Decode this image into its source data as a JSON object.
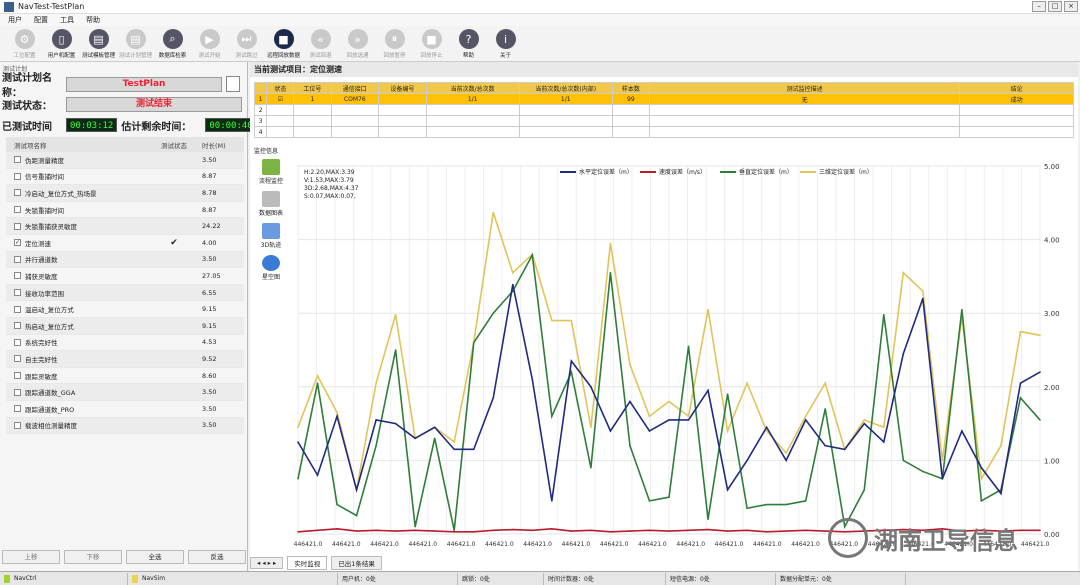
{
  "window": {
    "title": "NavTest-TestPlan"
  },
  "menu": [
    "用户",
    "配置",
    "工具",
    "帮助"
  ],
  "toolbar": [
    {
      "label": "工位配置",
      "icon": "gear-icon",
      "state": "dis"
    },
    {
      "label": "用户机配置",
      "icon": "device-icon",
      "state": "en"
    },
    {
      "label": "测试模板管理",
      "icon": "template-icon",
      "state": "en"
    },
    {
      "label": "测试计划管理",
      "icon": "plan-icon",
      "state": "dis"
    },
    {
      "label": "数据库检索",
      "icon": "database-search-icon",
      "state": "en"
    },
    {
      "label": "测试开始",
      "icon": "play-icon",
      "state": "dis"
    },
    {
      "label": "测试跳过",
      "icon": "skip-icon",
      "state": "dis"
    },
    {
      "label": "远程回放数据",
      "icon": "remote-replay-icon",
      "state": "dk"
    },
    {
      "label": "测试回退",
      "icon": "rewind-icon",
      "state": "dis"
    },
    {
      "label": "回放选通",
      "icon": "forward-icon",
      "state": "dis"
    },
    {
      "label": "回放暂停",
      "icon": "pause-icon",
      "state": "dis"
    },
    {
      "label": "回放停止",
      "icon": "stop-icon",
      "state": "dis"
    },
    {
      "label": "帮助",
      "icon": "help-icon",
      "state": "en"
    },
    {
      "label": "关于",
      "icon": "info-icon",
      "state": "en"
    }
  ],
  "left": {
    "section": "测试计划",
    "plan_label": "测试计划名称：",
    "plan_value": "TestPlan",
    "status_label": "测试状态：",
    "status_value": "测试结束",
    "elapsed_label": "已测试时间",
    "elapsed": "00:03:12",
    "remain_label": "估计剩余时间：",
    "remain": "00:00:40",
    "headers": [
      "测试项名称",
      "测试状态",
      "时长(M)"
    ],
    "items": [
      {
        "name": "伪距测量精度",
        "status": "",
        "dur": "3.50",
        "checked": false
      },
      {
        "name": "信号重捕时间",
        "status": "",
        "dur": "8.87",
        "checked": false
      },
      {
        "name": "冷启动_复位方式_热场景",
        "status": "",
        "dur": "8.78",
        "checked": false
      },
      {
        "name": "失锁重捕时间",
        "status": "",
        "dur": "8.87",
        "checked": false
      },
      {
        "name": "失锁重捕获灵敏度",
        "status": "",
        "dur": "24.22",
        "checked": false
      },
      {
        "name": "定位测速",
        "status": "✔",
        "dur": "4.00",
        "checked": true
      },
      {
        "name": "并行通道数",
        "status": "",
        "dur": "3.50",
        "checked": false
      },
      {
        "name": "捕获灵敏度",
        "status": "",
        "dur": "27.05",
        "checked": false
      },
      {
        "name": "接收功率范围",
        "status": "",
        "dur": "6.55",
        "checked": false
      },
      {
        "name": "温启动_复位方式",
        "status": "",
        "dur": "9.15",
        "checked": false
      },
      {
        "name": "热启动_复位方式",
        "status": "",
        "dur": "9.15",
        "checked": false
      },
      {
        "name": "系统完好性",
        "status": "",
        "dur": "4.53",
        "checked": false
      },
      {
        "name": "自主完好性",
        "status": "",
        "dur": "9.52",
        "checked": false
      },
      {
        "name": "跟踪灵敏度",
        "status": "",
        "dur": "8.60",
        "checked": false
      },
      {
        "name": "跟踪通道数_GGA",
        "status": "",
        "dur": "3.50",
        "checked": false
      },
      {
        "name": "跟踪通道数_PRO",
        "status": "",
        "dur": "3.50",
        "checked": false
      },
      {
        "name": "载波相位测量精度",
        "status": "",
        "dur": "3.50",
        "checked": false
      }
    ],
    "buttons": [
      "上移",
      "下移",
      "全选",
      "反选"
    ]
  },
  "right": {
    "title": "当前测试项目：定位测速",
    "table_headers": [
      "",
      "状态",
      "工位号",
      "通信接口",
      "设备编号",
      "当前次数/总次数",
      "当前次数/总次数(内部)",
      "样本数",
      "测试监控描述",
      "结论"
    ],
    "rows": [
      [
        "1",
        "☑",
        "1",
        "COM76",
        "",
        "1/1",
        "1/1",
        "99",
        "无",
        "成功"
      ],
      [
        "2",
        "",
        "",
        "",
        "",
        "",
        "",
        "",
        "",
        ""
      ],
      [
        "3",
        "",
        "",
        "",
        "",
        "",
        "",
        "",
        "",
        ""
      ],
      [
        "4",
        "",
        "",
        "",
        "",
        "",
        "",
        "",
        "",
        ""
      ]
    ],
    "side_title": "监控信息",
    "side_buttons": [
      "流程监控",
      "数据图表",
      "3D轨迹",
      "星空图"
    ],
    "tabs": [
      "实时监视",
      "已出1条结果"
    ]
  },
  "statusbar": [
    "NavCtrl",
    "NavSim",
    "用户机：0处",
    "跳锁：0处",
    "时间计数器：0处",
    "短信电源：0处",
    "数据分配单元：0处"
  ],
  "watermark": "湖南卫导信息",
  "chart_data": {
    "type": "line",
    "stats": [
      "H:2.20,MAX:3.39",
      "V:1.53,MAX:3.79",
      "3D:2.68,MAX:4.37",
      "S:0.07,MAX:0.07,"
    ],
    "yticks": [
      "5.00",
      "4.00",
      "3.00",
      "2.00",
      "1.00",
      "0.00"
    ],
    "ylim": [
      0,
      5
    ],
    "xticks": [
      "446421.0",
      "446421.0",
      "446421.0",
      "446421.0",
      "446421.0",
      "446421.0",
      "446421.0",
      "446421.0",
      "446421.0",
      "446421.0",
      "446421.0",
      "446421.0",
      "446421.0",
      "446421.0",
      "446421.0",
      "446421.0",
      "446421.0",
      "446421.0",
      "446421.0",
      "446421.0"
    ],
    "series": [
      {
        "name": "水平定位误差（m）",
        "color": "#1f2a80",
        "values": [
          1.25,
          0.8,
          1.6,
          0.6,
          1.55,
          1.5,
          1.3,
          1.45,
          1.15,
          1.15,
          1.85,
          3.39,
          2.1,
          0.45,
          2.35,
          2.0,
          1.4,
          1.8,
          1.4,
          1.55,
          1.55,
          1.95,
          0.6,
          1.0,
          1.45,
          1.0,
          1.55,
          1.2,
          1.15,
          1.5,
          1.25,
          2.45,
          3.2,
          0.75,
          1.4,
          0.9,
          0.55,
          2.05,
          2.2
        ]
      },
      {
        "name": "速度误差（m/s）",
        "color": "#b81c2c",
        "values": [
          0.03,
          0.05,
          0.07,
          0.04,
          0.05,
          0.04,
          0.05,
          0.04,
          0.03,
          0.03,
          0.05,
          0.06,
          0.05,
          0.07,
          0.04,
          0.05,
          0.03,
          0.04,
          0.05,
          0.04,
          0.05,
          0.06,
          0.04,
          0.05,
          0.03,
          0.04,
          0.05,
          0.04,
          0.03,
          0.04,
          0.05,
          0.06,
          0.05,
          0.07,
          0.04,
          0.05,
          0.04,
          0.05,
          0.05
        ]
      },
      {
        "name": "垂直定位误差（m）",
        "color": "#2f7d3a",
        "values": [
          0.75,
          2.05,
          0.4,
          0.25,
          1.2,
          2.5,
          0.1,
          1.3,
          0.05,
          2.6,
          3.0,
          3.3,
          3.79,
          1.6,
          2.2,
          0.9,
          3.55,
          1.2,
          0.45,
          0.5,
          2.55,
          0.2,
          1.9,
          0.35,
          0.4,
          0.4,
          0.45,
          1.7,
          0.1,
          0.6,
          2.98,
          1.0,
          0.85,
          0.75,
          3.05,
          0.45,
          0.6,
          1.85,
          1.55
        ]
      },
      {
        "name": "三维定位误差（m）",
        "color": "#e0c45a",
        "values": [
          1.45,
          2.15,
          1.65,
          0.6,
          2.05,
          2.98,
          1.3,
          1.45,
          1.25,
          2.6,
          4.37,
          3.55,
          3.8,
          2.9,
          2.9,
          1.45,
          3.95,
          2.3,
          1.6,
          1.8,
          1.6,
          3.05,
          1.4,
          2.05,
          1.4,
          1.1,
          1.6,
          2.05,
          1.15,
          1.55,
          1.45,
          3.55,
          3.3,
          1.0,
          2.95,
          0.75,
          1.2,
          2.75,
          2.7
        ]
      }
    ]
  }
}
